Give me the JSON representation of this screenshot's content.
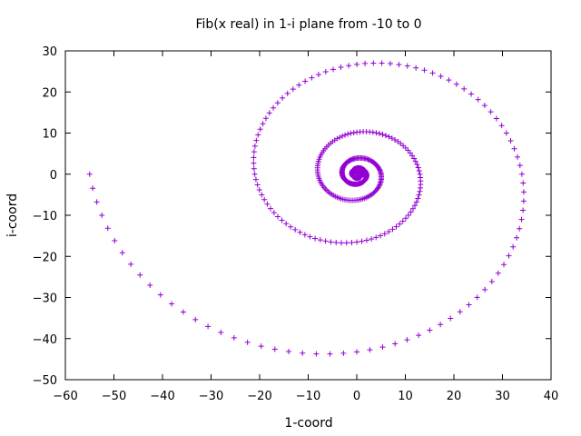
{
  "chart_data": {
    "type": "scatter",
    "title": "Fib(x real) in 1-i plane from -10 to 0",
    "xlabel": "1-coord",
    "ylabel": "i-coord",
    "xlim": [
      -60,
      40
    ],
    "ylim": [
      -50,
      30
    ],
    "xticks": [
      -60,
      -50,
      -40,
      -30,
      -20,
      -10,
      0,
      10,
      20,
      30,
      40
    ],
    "yticks": [
      -50,
      -40,
      -30,
      -20,
      -10,
      0,
      10,
      20,
      30
    ],
    "x_range": [
      -10,
      0
    ],
    "marker": "+",
    "color": "#9400d3",
    "grid": false,
    "legend": "none"
  }
}
